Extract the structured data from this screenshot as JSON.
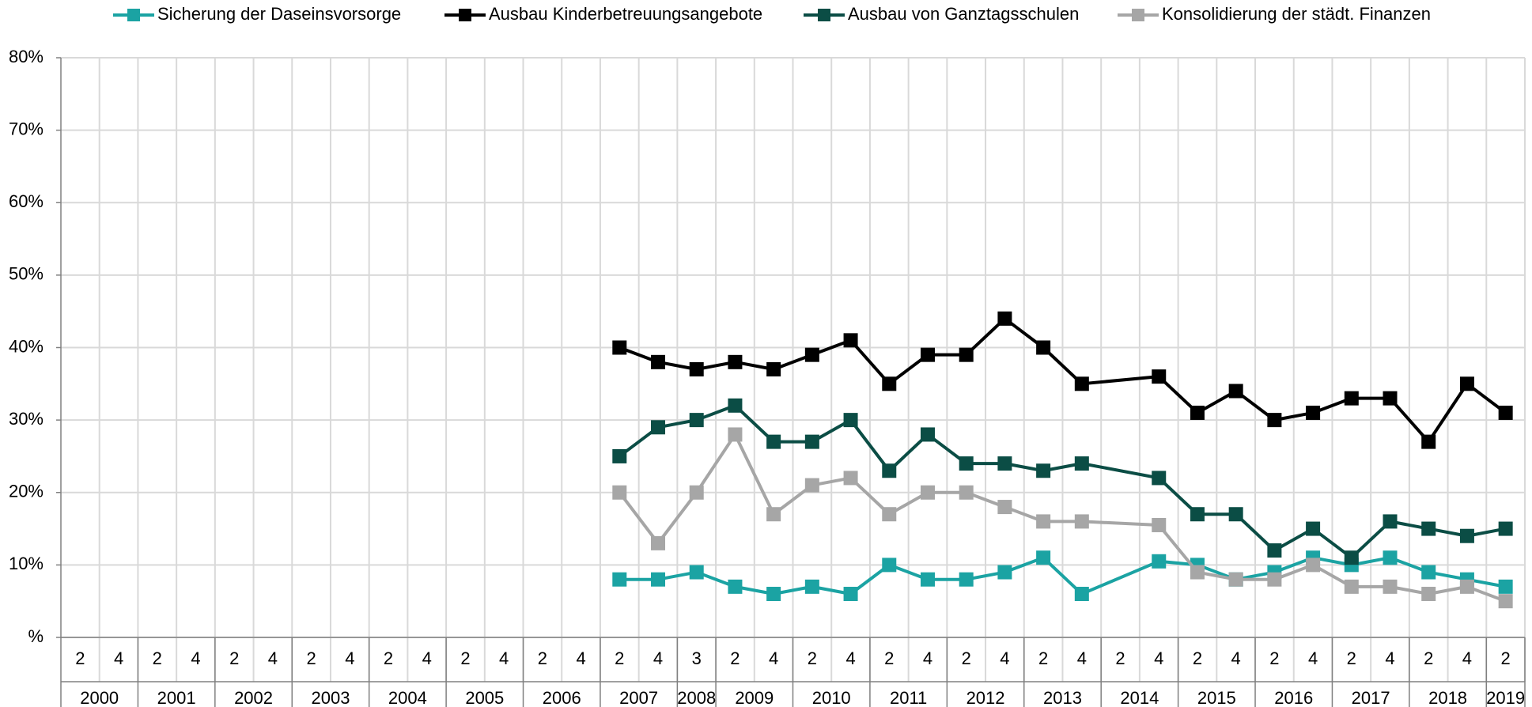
{
  "chart_data": {
    "type": "line",
    "periods": [
      {
        "year": "2000",
        "quarters": [
          "2",
          "4"
        ]
      },
      {
        "year": "2001",
        "quarters": [
          "2",
          "4"
        ]
      },
      {
        "year": "2002",
        "quarters": [
          "2",
          "4"
        ]
      },
      {
        "year": "2003",
        "quarters": [
          "2",
          "4"
        ]
      },
      {
        "year": "2004",
        "quarters": [
          "2",
          "4"
        ]
      },
      {
        "year": "2005",
        "quarters": [
          "2",
          "4"
        ]
      },
      {
        "year": "2006",
        "quarters": [
          "2",
          "4"
        ]
      },
      {
        "year": "2007",
        "quarters": [
          "2",
          "4"
        ]
      },
      {
        "year": "2008",
        "quarters": [
          "3"
        ]
      },
      {
        "year": "2009",
        "quarters": [
          "2",
          "4"
        ]
      },
      {
        "year": "2010",
        "quarters": [
          "2",
          "4"
        ]
      },
      {
        "year": "2011",
        "quarters": [
          "2",
          "4"
        ]
      },
      {
        "year": "2012",
        "quarters": [
          "2",
          "4"
        ]
      },
      {
        "year": "2013",
        "quarters": [
          "2",
          "4"
        ]
      },
      {
        "year": "2014",
        "quarters": [
          "2",
          "4"
        ]
      },
      {
        "year": "2015",
        "quarters": [
          "2",
          "4"
        ]
      },
      {
        "year": "2016",
        "quarters": [
          "2",
          "4"
        ]
      },
      {
        "year": "2017",
        "quarters": [
          "2",
          "4"
        ]
      },
      {
        "year": "2018",
        "quarters": [
          "2",
          "4"
        ]
      },
      {
        "year": "2019",
        "quarters": [
          "2"
        ]
      }
    ],
    "series": [
      {
        "name": "Sicherung der Daseinsvorsorge",
        "color": "#1ba3a3",
        "values": [
          null,
          null,
          null,
          null,
          null,
          null,
          null,
          null,
          null,
          null,
          null,
          null,
          null,
          null,
          8,
          8,
          9,
          7,
          6,
          7,
          6,
          10,
          8,
          8,
          9,
          11,
          6,
          null,
          10.5,
          10,
          8,
          9,
          11,
          10,
          11,
          9,
          8,
          7
        ]
      },
      {
        "name": "Ausbau Kinderbetreuungsangebote",
        "color": "#000000",
        "values": [
          null,
          null,
          null,
          null,
          null,
          null,
          null,
          null,
          null,
          null,
          null,
          null,
          null,
          null,
          40,
          38,
          37,
          38,
          37,
          39,
          41,
          35,
          39,
          39,
          44,
          40,
          35,
          null,
          36,
          31,
          34,
          30,
          31,
          33,
          33,
          27,
          35,
          31
        ]
      },
      {
        "name": "Ausbau von Ganztagsschulen",
        "color": "#0b4d45",
        "values": [
          null,
          null,
          null,
          null,
          null,
          null,
          null,
          null,
          null,
          null,
          null,
          null,
          null,
          null,
          25,
          29,
          30,
          32,
          27,
          27,
          30,
          23,
          28,
          24,
          24,
          23,
          24,
          null,
          22,
          17,
          17,
          12,
          15,
          11,
          16,
          15,
          14,
          15
        ]
      },
      {
        "name": "Konsolidierung der städt. Finanzen",
        "color": "#a6a6a6",
        "values": [
          null,
          null,
          null,
          null,
          null,
          null,
          null,
          null,
          null,
          null,
          null,
          null,
          null,
          null,
          20,
          13,
          20,
          28,
          17,
          21,
          22,
          17,
          20,
          20,
          18,
          16,
          16,
          null,
          15.5,
          9,
          8,
          8,
          10,
          7,
          7,
          6,
          7,
          5
        ]
      }
    ],
    "ylim": [
      0,
      80
    ],
    "yticks": [
      {
        "value": 0,
        "label": "%"
      },
      {
        "value": 10,
        "label": "10%"
      },
      {
        "value": 20,
        "label": "20%"
      },
      {
        "value": 30,
        "label": "30%"
      },
      {
        "value": 40,
        "label": "40%"
      },
      {
        "value": 50,
        "label": "50%"
      },
      {
        "value": 60,
        "label": "60%"
      },
      {
        "value": 70,
        "label": "70%"
      },
      {
        "value": 80,
        "label": "80%"
      }
    ],
    "grid": true,
    "span_gaps": true,
    "legend": "top"
  }
}
